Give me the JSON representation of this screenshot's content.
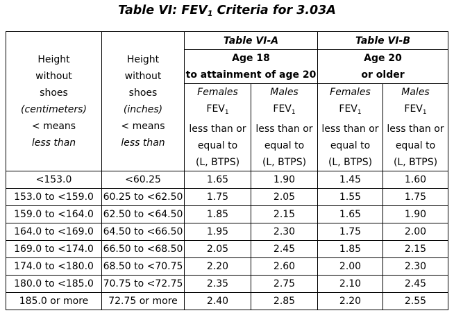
{
  "title": {
    "prefix": "Table VI: FEV",
    "sub": "1",
    "suffix": " Criteria for 3.03A"
  },
  "header": {
    "col1": {
      "l1": "Height",
      "l2": "without",
      "l3": "shoes",
      "l4": "(centimeters)",
      "l5": "< means",
      "l6": "less than"
    },
    "col2": {
      "l1": "Height",
      "l2": "without",
      "l3": "shoes",
      "l4": "(inches)",
      "l5": "< means",
      "l6": "less than"
    },
    "groupA": {
      "name": "Table VI-A",
      "line1": "Age 18",
      "line2": "to attainment of age 20"
    },
    "groupB": {
      "name": "Table VI-B",
      "line1": "Age 20",
      "line2": "or older"
    },
    "sub": [
      {
        "sex": "Females",
        "fev": "FEV",
        "fevsub": "1",
        "l1": "less than or",
        "l2": "equal to",
        "l3": "(L, BTPS)"
      },
      {
        "sex": "Males",
        "fev": "FEV",
        "fevsub": "1",
        "l1": "less than or",
        "l2": "equal to",
        "l3": "(L, BTPS)"
      },
      {
        "sex": "Females",
        "fev": "FEV",
        "fevsub": "1",
        "l1": "less than or",
        "l2": "equal to",
        "l3": "(L, BTPS)"
      },
      {
        "sex": "Males",
        "fev": "FEV",
        "fevsub": "1",
        "l1": "less than or",
        "l2": "equal to",
        "l3": "(L, BTPS)"
      }
    ]
  },
  "rows": [
    [
      "<153.0",
      "<60.25",
      "1.65",
      "1.90",
      "1.45",
      "1.60"
    ],
    [
      "153.0 to <159.0",
      "60.25 to <62.50",
      "1.75",
      "2.05",
      "1.55",
      "1.75"
    ],
    [
      "159.0 to <164.0",
      "62.50 to <64.50",
      "1.85",
      "2.15",
      "1.65",
      "1.90"
    ],
    [
      "164.0 to <169.0",
      "64.50 to <66.50",
      "1.95",
      "2.30",
      "1.75",
      "2.00"
    ],
    [
      "169.0 to <174.0",
      "66.50 to <68.50",
      "2.05",
      "2.45",
      "1.85",
      "2.15"
    ],
    [
      "174.0 to <180.0",
      "68.50 to <70.75",
      "2.20",
      "2.60",
      "2.00",
      "2.30"
    ],
    [
      "180.0 to <185.0",
      "70.75 to <72.75",
      "2.35",
      "2.75",
      "2.10",
      "2.45"
    ],
    [
      "185.0 or more",
      "72.75 or more",
      "2.40",
      "2.85",
      "2.20",
      "2.55"
    ]
  ]
}
